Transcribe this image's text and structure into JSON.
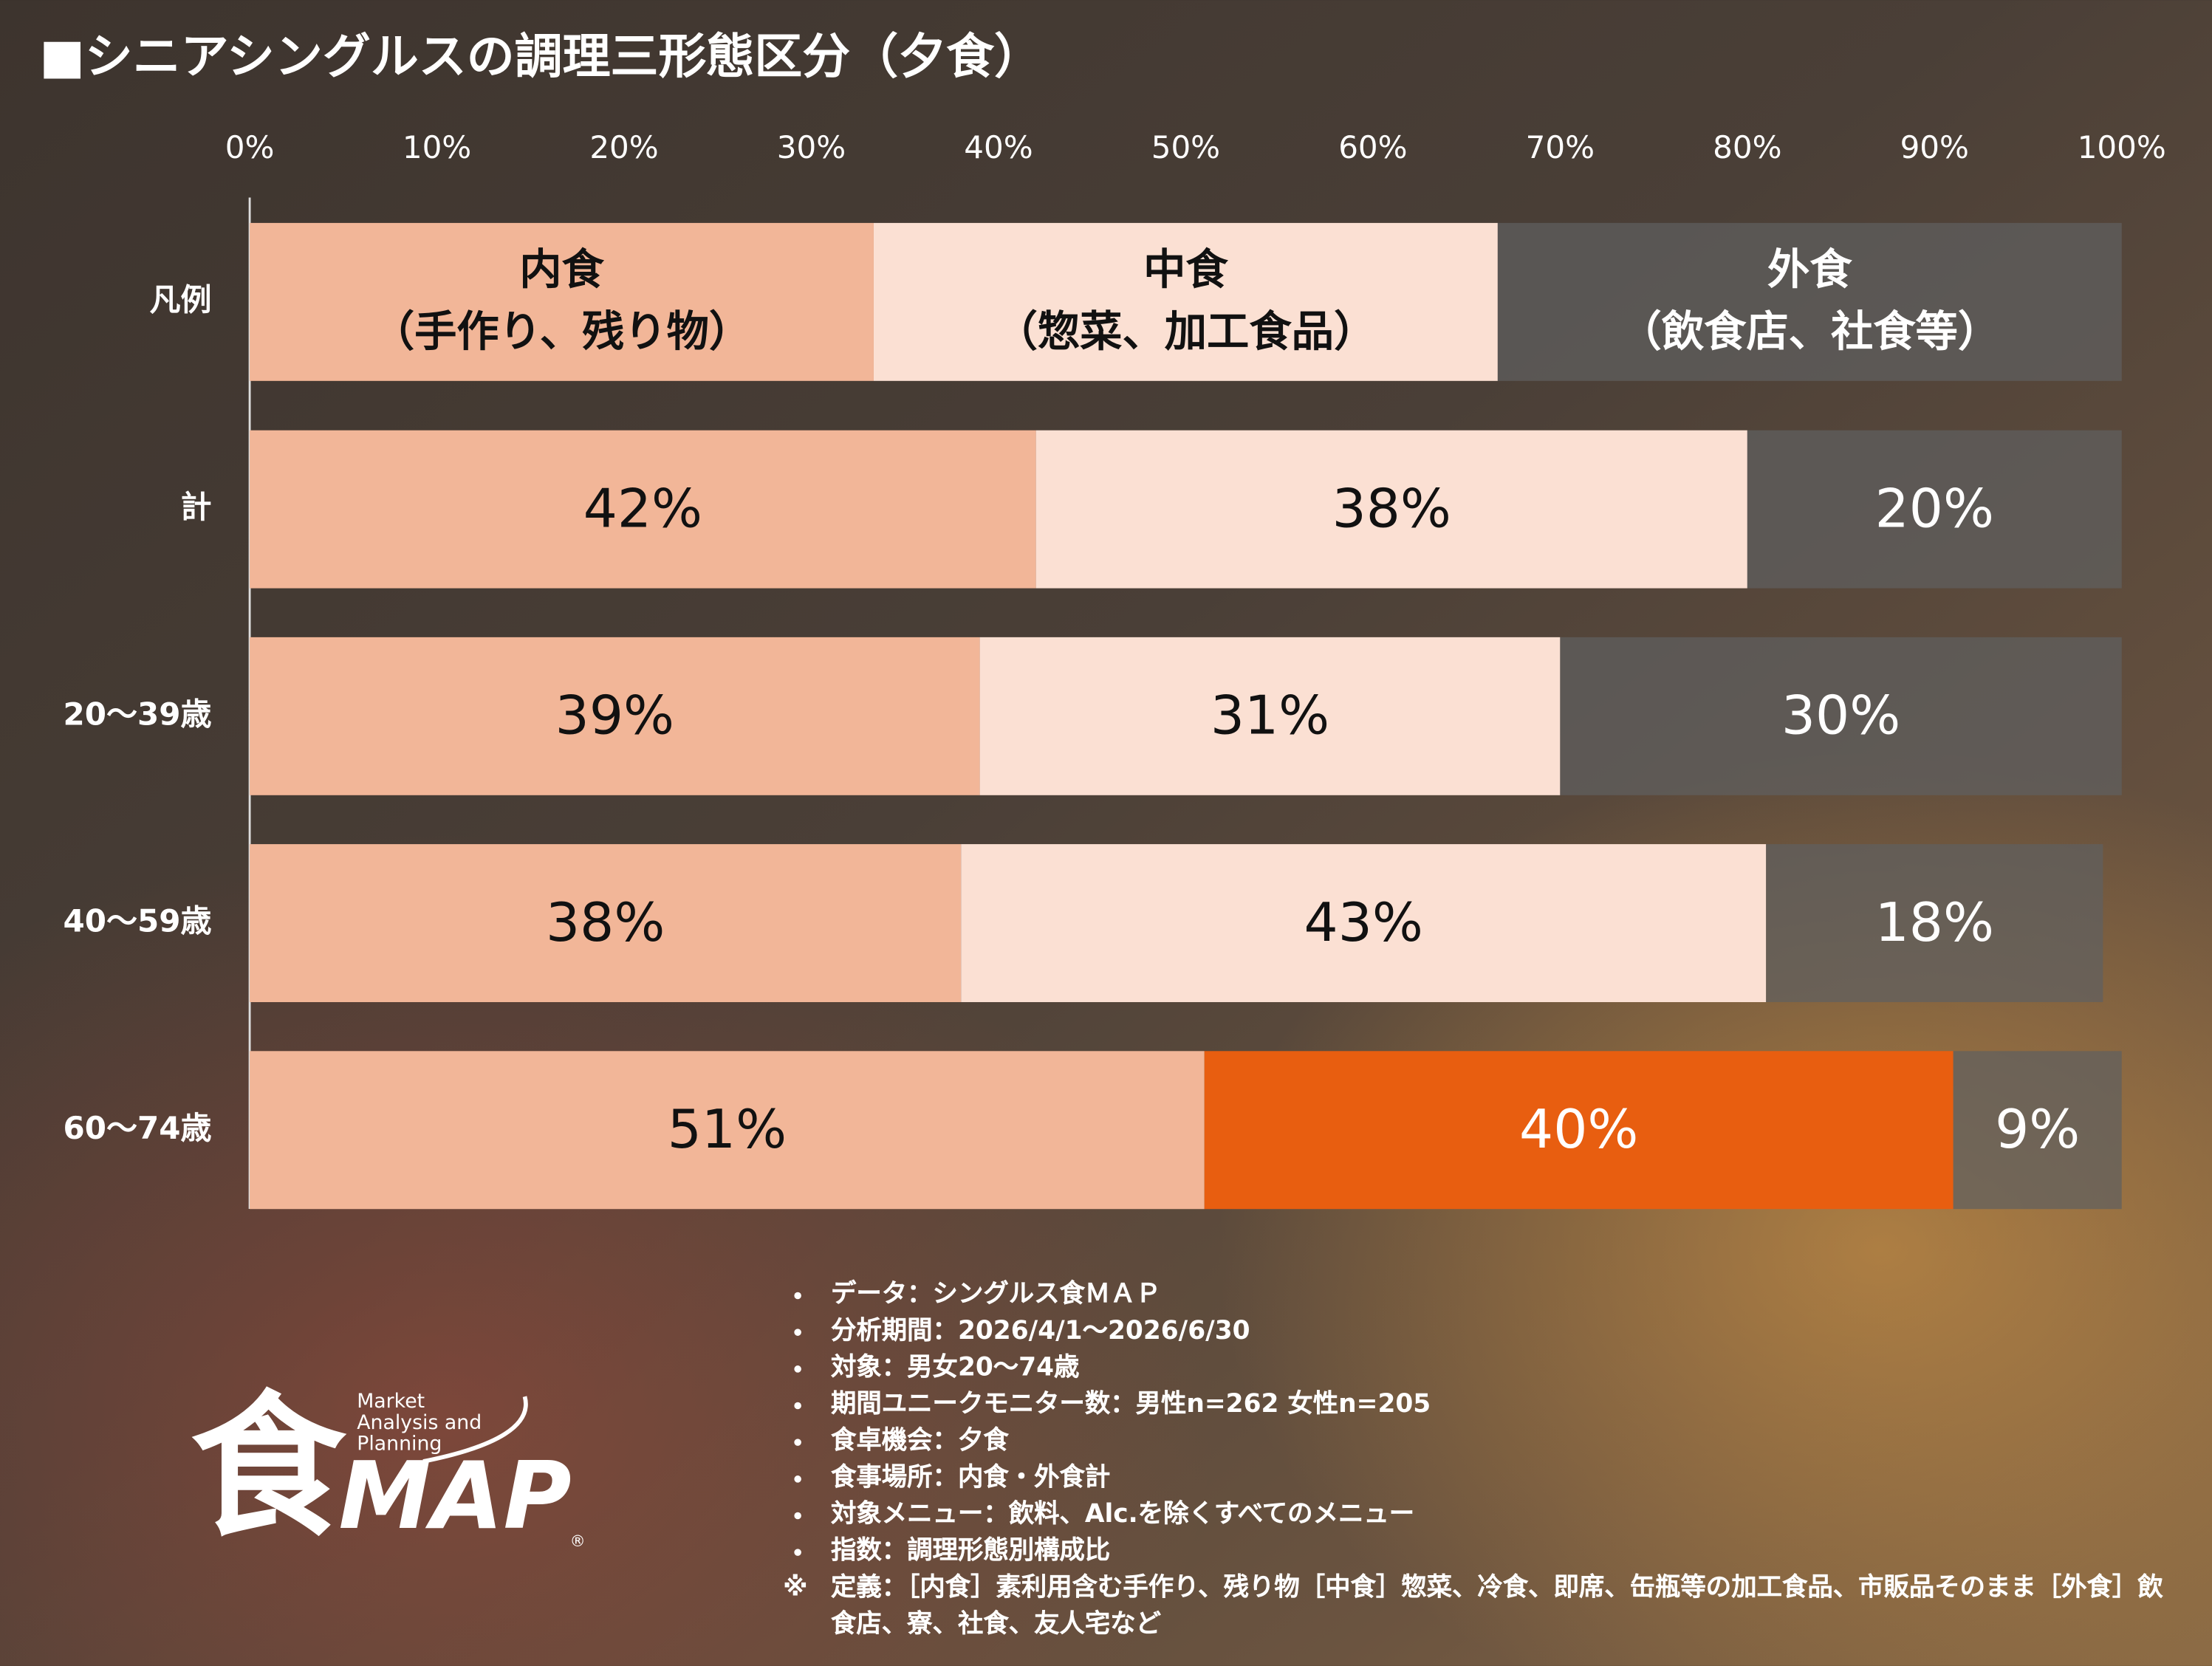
{
  "chart_data": {
    "type": "stacked_bar_horizontal",
    "title": "■シニアシングルスの調理三形態区分（夕食）",
    "legend_title": "凡例",
    "categories": [
      "計",
      "20〜39歳",
      "40〜59歳",
      "60〜74歳"
    ],
    "series": [
      {
        "name": "内食",
        "description": "（手作り、残り物）",
        "color": "#f2b698",
        "label_color": "#111111",
        "values": [
          42,
          39,
          38,
          51
        ],
        "value_labels": [
          "42%",
          "39%",
          "38%",
          "51%"
        ]
      },
      {
        "name": "中食",
        "description": "（惣菜、加工食品）",
        "color": "#fbe0d3",
        "label_color": "#111111",
        "colors": [
          "#fbe0d3",
          "#fbe0d3",
          "#fbe0d3",
          "#e85e10"
        ],
        "label_colors": [
          "#111111",
          "#111111",
          "#111111",
          "#ffffff"
        ],
        "values": [
          38,
          31,
          43,
          40
        ],
        "value_labels": [
          "38%",
          "31%",
          "43%",
          "40%"
        ]
      },
      {
        "name": "外食",
        "description": "（飲食店、社食等）",
        "color": "rgba(95,95,95,0.72)",
        "label_color": "#ffffff",
        "values": [
          20,
          30,
          18,
          9
        ],
        "value_labels": [
          "20%",
          "30%",
          "18%",
          "9%"
        ]
      }
    ],
    "xlim": [
      0,
      100
    ],
    "xticks": [
      {
        "value": 0,
        "label": "0%"
      },
      {
        "value": 10,
        "label": "10%"
      },
      {
        "value": 20,
        "label": "20%"
      },
      {
        "value": 30,
        "label": "30%"
      },
      {
        "value": 40,
        "label": "40%"
      },
      {
        "value": 50,
        "label": "50%"
      },
      {
        "value": 60,
        "label": "60%"
      },
      {
        "value": 70,
        "label": "70%"
      },
      {
        "value": 80,
        "label": "80%"
      },
      {
        "value": 90,
        "label": "90%"
      },
      {
        "value": 100,
        "label": "100%"
      }
    ],
    "notes": [
      "データ：シングルス食ＭＡＰ",
      "分析期間：2026/4/1〜2026/6/30",
      "対象：男女20〜74歳",
      "期間ユニークモニター数：男性n=262 女性n=205",
      "食卓機会：夕食",
      "食事場所：内食・外食計",
      "対象メニュー：飲料、Alc.を除くすべてのメニュー",
      "指数：調理形態別構成比"
    ],
    "definition": {
      "mark": "※",
      "text": "定義：［内食］素利用含む手作り、残り物［中食］惣菜、冷食、即席、缶瓶等の加工食品、市販品そのまま［外食］飲食店、寮、社食、友人宅など"
    },
    "logo": {
      "kanji": "食",
      "text": "MAP",
      "mark": "®",
      "tagline": [
        "Market",
        "Analysis and",
        "Planning"
      ]
    }
  }
}
